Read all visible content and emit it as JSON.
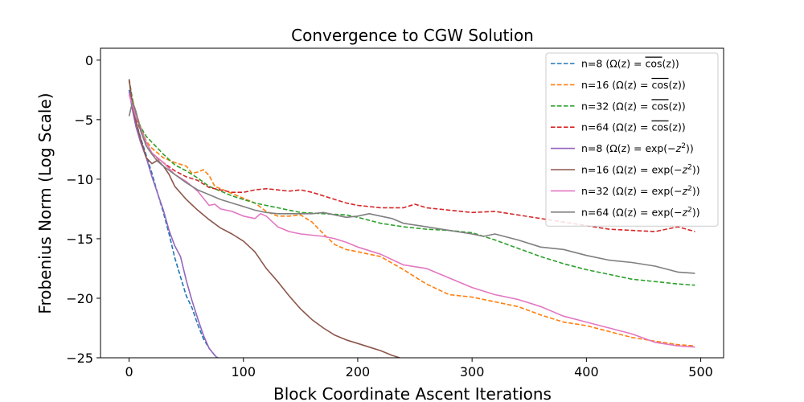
{
  "chart_data": {
    "type": "line",
    "title": "Convergence to CGW Solution",
    "xlabel": "Block Coordinate Ascent Iterations",
    "ylabel": "Frobenius Norm (Log Scale)",
    "xlim": [
      -25,
      520
    ],
    "ylim": [
      -25,
      1
    ],
    "xticks": [
      0,
      100,
      200,
      300,
      400,
      500
    ],
    "yticks": [
      0,
      -5,
      -10,
      -15,
      -20,
      -25
    ],
    "grid": false,
    "legend_position": "top-right",
    "series": [
      {
        "name": "n=8  (Ω(z) = cos(z))",
        "label_prefix": "n=8  (Ω(z) = ",
        "label_func": "cos",
        "label_arg": "(z))",
        "overline": true,
        "color": "#1f77b4",
        "dash": true,
        "x": [
          0,
          3,
          6,
          10,
          15,
          20,
          25,
          30,
          35,
          40,
          45,
          50,
          55,
          60,
          65,
          70,
          75,
          80,
          82
        ],
        "y": [
          -2.5,
          -3.6,
          -5.2,
          -6.5,
          -8.0,
          -9.5,
          -11.2,
          -12.8,
          -14.6,
          -16.6,
          -18.2,
          -19.8,
          -20.8,
          -22.2,
          -23.4,
          -24.2,
          -24.8,
          -25.2,
          -25.4
        ]
      },
      {
        "name": "n=16 (Ω(z) = cos(z))",
        "label_prefix": "n=16 (Ω(z) = ",
        "label_func": "cos",
        "label_arg": "(z))",
        "overline": true,
        "color": "#ff7f0e",
        "dash": true,
        "x": [
          0,
          3,
          6,
          10,
          15,
          20,
          30,
          40,
          50,
          55,
          60,
          65,
          70,
          75,
          80,
          90,
          100,
          110,
          120,
          130,
          140,
          150,
          160,
          170,
          180,
          190,
          200,
          220,
          240,
          260,
          280,
          300,
          320,
          340,
          360,
          380,
          400,
          420,
          440,
          460,
          480,
          495
        ],
        "y": [
          -2.9,
          -3.3,
          -4.4,
          -5.6,
          -6.8,
          -7.4,
          -8.2,
          -8.6,
          -8.9,
          -9.5,
          -9.4,
          -9.2,
          -9.7,
          -10.6,
          -10.8,
          -11.2,
          -11.6,
          -12.0,
          -12.7,
          -13.1,
          -13.1,
          -13.0,
          -13.6,
          -14.6,
          -15.5,
          -15.9,
          -16.1,
          -16.5,
          -17.6,
          -18.8,
          -19.7,
          -19.9,
          -20.3,
          -20.7,
          -21.4,
          -22.0,
          -22.3,
          -22.8,
          -23.3,
          -23.6,
          -23.9,
          -24.0
        ]
      },
      {
        "name": "n=32 (Ω(z) = cos(z))",
        "label_prefix": "n=32 (Ω(z) = ",
        "label_func": "cos",
        "label_arg": "(z))",
        "overline": true,
        "color": "#2ca02c",
        "dash": true,
        "x": [
          0,
          3,
          6,
          10,
          15,
          20,
          30,
          40,
          50,
          60,
          70,
          80,
          90,
          100,
          110,
          120,
          130,
          140,
          150,
          170,
          190,
          200,
          220,
          240,
          260,
          280,
          300,
          320,
          340,
          360,
          380,
          400,
          420,
          440,
          460,
          480,
          495
        ],
        "y": [
          -1.6,
          -3.3,
          -4.7,
          -5.6,
          -6.4,
          -6.9,
          -7.9,
          -8.8,
          -9.3,
          -9.9,
          -10.6,
          -11.0,
          -11.4,
          -11.7,
          -12.0,
          -12.2,
          -12.4,
          -12.6,
          -12.8,
          -12.9,
          -13.0,
          -13.2,
          -13.7,
          -14.0,
          -14.2,
          -14.3,
          -14.5,
          -15.1,
          -15.8,
          -16.5,
          -17.1,
          -17.6,
          -18.0,
          -18.4,
          -18.6,
          -18.8,
          -18.9
        ]
      },
      {
        "name": "n=64 (Ω(z) = cos(z))",
        "label_prefix": "n=64 (Ω(z) = ",
        "label_func": "cos",
        "label_arg": "(z))",
        "overline": true,
        "color": "#d62728",
        "dash": true,
        "x": [
          0,
          3,
          6,
          10,
          15,
          20,
          30,
          40,
          50,
          60,
          70,
          80,
          90,
          100,
          110,
          120,
          130,
          140,
          150,
          160,
          170,
          180,
          190,
          200,
          210,
          220,
          230,
          240,
          250,
          260,
          280,
          300,
          320,
          340,
          360,
          380,
          400,
          420,
          440,
          460,
          480,
          495
        ],
        "y": [
          -1.7,
          -3.6,
          -4.9,
          -5.9,
          -7.2,
          -7.9,
          -8.6,
          -9.3,
          -9.8,
          -10.1,
          -10.7,
          -10.9,
          -11.1,
          -11.1,
          -10.9,
          -10.8,
          -10.9,
          -11.0,
          -10.9,
          -11.1,
          -11.4,
          -11.7,
          -12.0,
          -12.2,
          -12.3,
          -12.4,
          -12.4,
          -12.4,
          -12.1,
          -12.4,
          -12.6,
          -12.8,
          -12.7,
          -13.0,
          -13.3,
          -13.6,
          -13.9,
          -14.2,
          -14.3,
          -14.4,
          -14.0,
          -14.4
        ]
      },
      {
        "name": "n=8  (Ω(z) = exp(−z²))",
        "label_prefix": "n=8  (Ω(z) = ",
        "label_func": "exp(−",
        "label_arg": "))",
        "exp": true,
        "overline": false,
        "color": "#9467bd",
        "dash": false,
        "x": [
          0,
          3,
          6,
          10,
          15,
          20,
          25,
          30,
          35,
          40,
          45,
          50,
          55,
          60,
          65,
          70,
          75,
          80,
          84
        ],
        "y": [
          -2.6,
          -4.2,
          -5.6,
          -6.9,
          -8.2,
          -9.8,
          -11.2,
          -12.6,
          -14.3,
          -15.6,
          -16.5,
          -18.5,
          -20.2,
          -21.7,
          -23.1,
          -24.2,
          -24.8,
          -25.3,
          -25.4
        ]
      },
      {
        "name": "n=16 (Ω(z) = exp(−z²))",
        "label_prefix": "n=16 (Ω(z) = ",
        "label_func": "exp(−",
        "label_arg": "))",
        "exp": true,
        "overline": false,
        "color": "#8c564b",
        "dash": false,
        "x": [
          0,
          3,
          6,
          10,
          15,
          20,
          25,
          30,
          35,
          40,
          50,
          60,
          70,
          80,
          90,
          100,
          110,
          120,
          130,
          140,
          150,
          160,
          170,
          180,
          190,
          200,
          210,
          220,
          230,
          240,
          245
        ],
        "y": [
          -1.6,
          -3.9,
          -5.2,
          -6.6,
          -8.2,
          -8.7,
          -8.4,
          -8.9,
          -9.6,
          -10.6,
          -11.7,
          -12.6,
          -13.4,
          -14.1,
          -14.6,
          -15.2,
          -16.1,
          -17.5,
          -18.6,
          -19.8,
          -20.9,
          -21.8,
          -22.5,
          -23.1,
          -23.5,
          -23.8,
          -24.1,
          -24.4,
          -24.8,
          -25.1,
          -25.2
        ]
      },
      {
        "name": "n=32 (Ω(z) = exp(−z²))",
        "label_prefix": "n=32 (Ω(z) = ",
        "label_func": "exp(−",
        "label_arg": "))",
        "exp": true,
        "overline": false,
        "color": "#e377c2",
        "dash": false,
        "x": [
          0,
          3,
          6,
          10,
          15,
          20,
          30,
          40,
          50,
          60,
          70,
          75,
          80,
          90,
          100,
          110,
          115,
          120,
          130,
          140,
          150,
          160,
          170,
          180,
          190,
          200,
          220,
          240,
          260,
          280,
          300,
          320,
          340,
          360,
          380,
          400,
          420,
          440,
          460,
          480,
          495
        ],
        "y": [
          -2.9,
          -3.8,
          -4.8,
          -5.7,
          -6.9,
          -7.8,
          -8.6,
          -9.6,
          -10.2,
          -11.0,
          -12.2,
          -12.1,
          -12.5,
          -12.7,
          -13.1,
          -13.3,
          -12.9,
          -13.1,
          -14.0,
          -14.4,
          -14.6,
          -14.7,
          -14.8,
          -15.0,
          -15.3,
          -15.7,
          -16.3,
          -17.2,
          -17.5,
          -18.3,
          -19.1,
          -19.7,
          -20.1,
          -20.7,
          -21.5,
          -22.0,
          -22.5,
          -23.0,
          -23.7,
          -24.0,
          -24.1
        ]
      },
      {
        "name": "n=64 (Ω(z) = exp(−z²))",
        "label_prefix": "n=64 (Ω(z) = ",
        "label_func": "exp(−",
        "label_arg": "))",
        "exp": true,
        "overline": false,
        "color": "#7f7f7f",
        "dash": false,
        "x": [
          0,
          3,
          6,
          10,
          15,
          20,
          25,
          30,
          40,
          50,
          60,
          70,
          80,
          90,
          100,
          110,
          120,
          130,
          140,
          150,
          160,
          170,
          180,
          190,
          200,
          210,
          220,
          230,
          240,
          260,
          280,
          300,
          310,
          320,
          340,
          360,
          380,
          400,
          420,
          440,
          460,
          480,
          495
        ],
        "y": [
          -4.7,
          -3.5,
          -4.3,
          -5.9,
          -7.2,
          -7.9,
          -8.5,
          -8.9,
          -9.6,
          -10.3,
          -10.9,
          -11.3,
          -11.7,
          -12.0,
          -12.3,
          -12.6,
          -12.8,
          -12.9,
          -12.9,
          -12.9,
          -12.9,
          -12.8,
          -13.0,
          -13.2,
          -13.1,
          -12.9,
          -13.1,
          -13.3,
          -13.7,
          -14.0,
          -14.3,
          -14.6,
          -14.8,
          -14.6,
          -15.1,
          -15.7,
          -15.9,
          -16.4,
          -16.8,
          -17.0,
          -17.3,
          -17.8,
          -17.9
        ]
      }
    ]
  }
}
